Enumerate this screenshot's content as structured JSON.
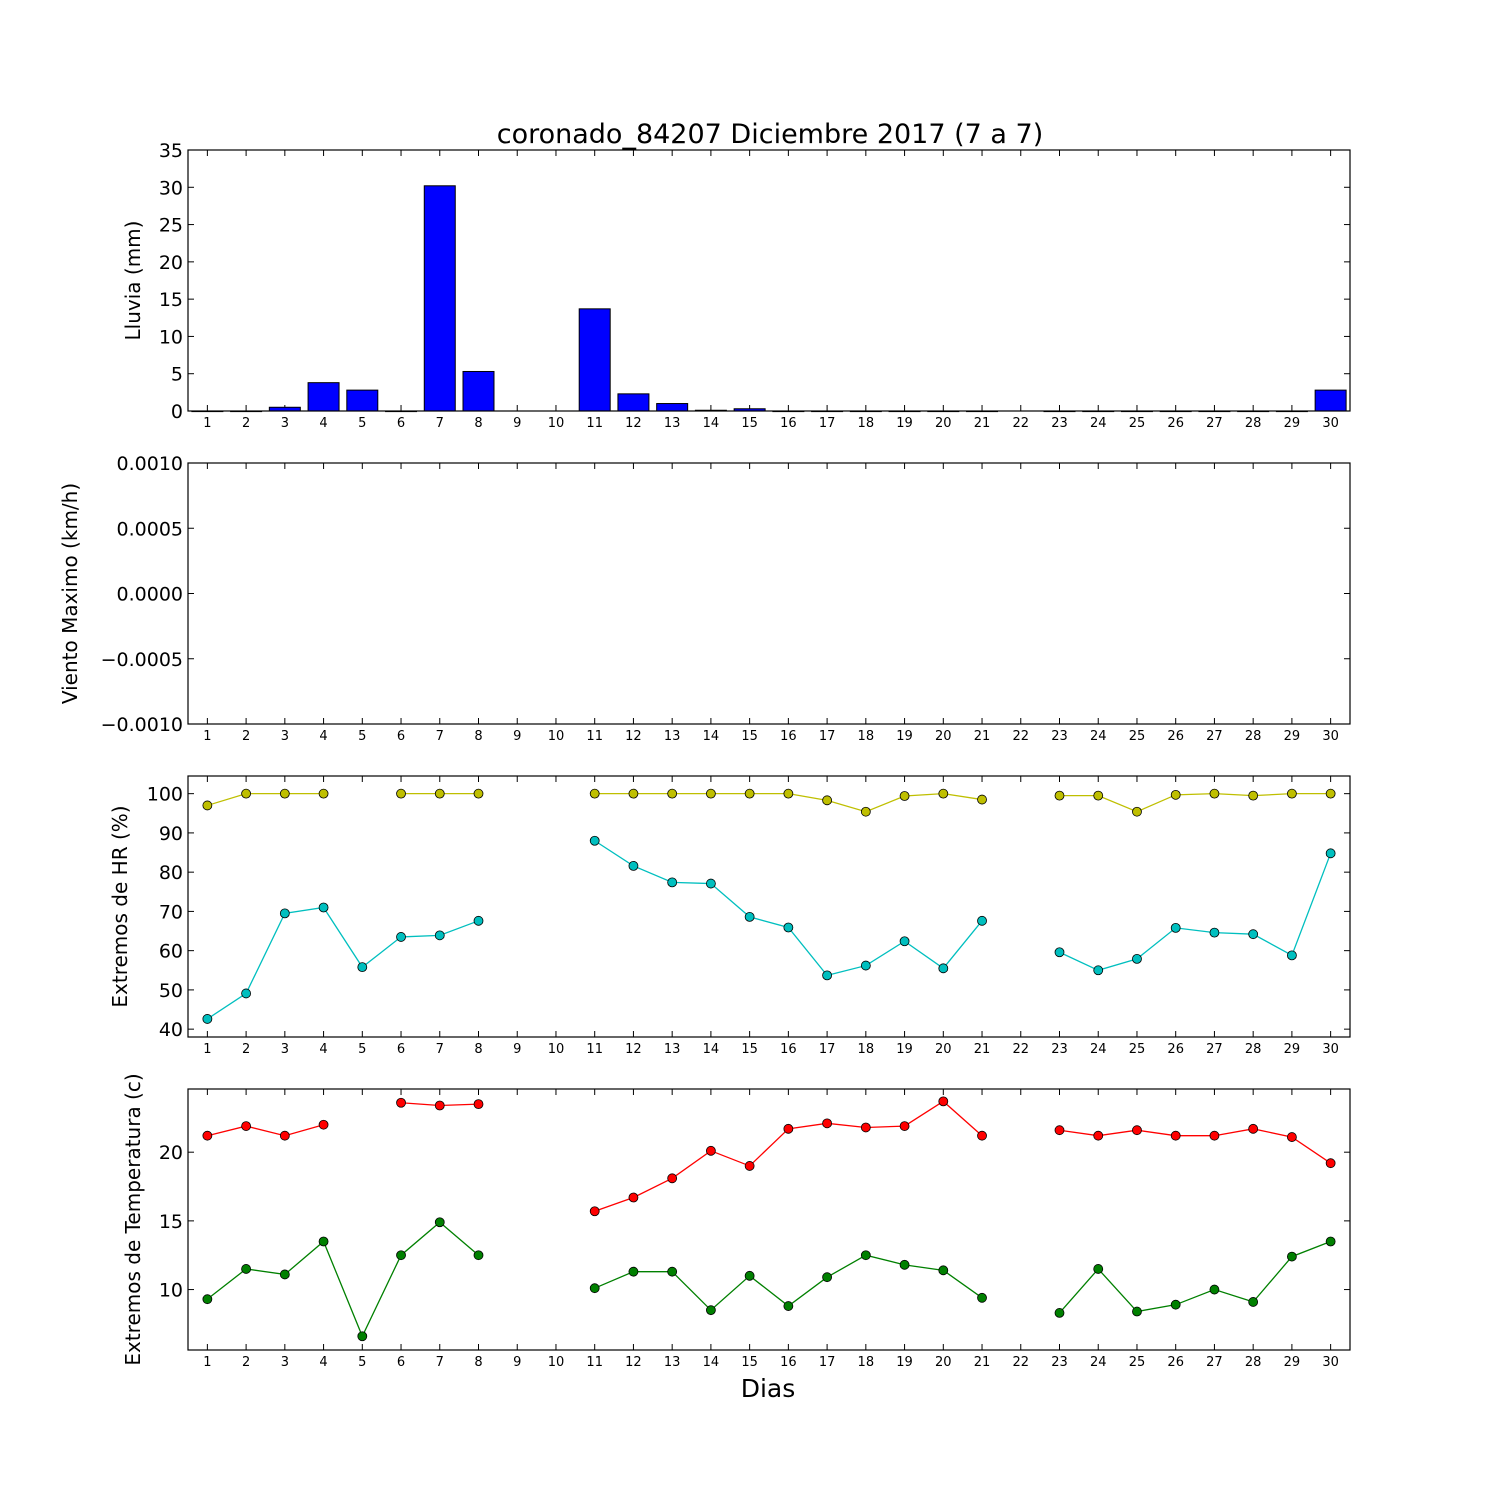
{
  "figure": {
    "title": "coronado_84207 Diciembre 2017  (7 a 7)",
    "xlabel": "Dias"
  },
  "chart_data": [
    {
      "type": "bar",
      "ylabel": "Lluvia (mm)",
      "ylim": [
        0,
        35
      ],
      "yticks": [
        0,
        5,
        10,
        15,
        20,
        25,
        30,
        35
      ],
      "categories": [
        1,
        2,
        3,
        4,
        5,
        6,
        7,
        8,
        9,
        10,
        11,
        12,
        13,
        14,
        15,
        16,
        17,
        18,
        19,
        20,
        21,
        22,
        23,
        24,
        25,
        26,
        27,
        28,
        29,
        30
      ],
      "values": [
        0,
        0,
        0.5,
        3.8,
        2.8,
        0,
        30.2,
        5.3,
        null,
        null,
        13.7,
        2.3,
        1.0,
        0.1,
        0.3,
        0,
        0,
        0,
        0,
        0,
        0,
        null,
        0,
        0,
        0,
        0,
        0,
        0,
        0,
        2.8
      ],
      "color": "#0000ff"
    },
    {
      "type": "line",
      "ylabel": "Viento Maximo (km/h)",
      "ylim": [
        -0.001,
        0.001
      ],
      "yticks": [
        "−0.0010",
        "−0.0005",
        "0.0000",
        "0.0005",
        "0.0010"
      ],
      "yticks_values": [
        -0.001,
        -0.0005,
        0,
        0.0005,
        0.001
      ],
      "x": [
        1,
        2,
        3,
        4,
        5,
        6,
        7,
        8,
        9,
        10,
        11,
        12,
        13,
        14,
        15,
        16,
        17,
        18,
        19,
        20,
        21,
        22,
        23,
        24,
        25,
        26,
        27,
        28,
        29,
        30
      ],
      "series": []
    },
    {
      "type": "line",
      "ylabel": "Extremos de HR (%)",
      "ylim": [
        38,
        104.5
      ],
      "yticks": [
        40,
        50,
        60,
        70,
        80,
        90,
        100
      ],
      "x": [
        1,
        2,
        3,
        4,
        5,
        6,
        7,
        8,
        9,
        10,
        11,
        12,
        13,
        14,
        15,
        16,
        17,
        18,
        19,
        20,
        21,
        22,
        23,
        24,
        25,
        26,
        27,
        28,
        29,
        30
      ],
      "series": [
        {
          "color": "#bfbf00",
          "values": [
            97,
            100,
            100,
            100,
            null,
            100,
            100,
            100,
            null,
            null,
            100,
            100,
            100,
            100,
            100,
            100,
            98.3,
            95.4,
            99.4,
            100,
            98.5,
            null,
            99.5,
            99.5,
            95.4,
            99.7,
            100,
            99.5,
            100,
            100
          ]
        },
        {
          "color": "#00bfbf",
          "values": [
            42.6,
            49.1,
            69.5,
            71.0,
            55.8,
            63.5,
            63.9,
            67.6,
            null,
            null,
            88.0,
            81.6,
            77.4,
            77.1,
            68.6,
            65.9,
            53.7,
            56.2,
            62.4,
            55.5,
            67.6,
            null,
            59.6,
            55.0,
            57.9,
            65.8,
            64.6,
            64.2,
            58.8,
            84.8
          ]
        }
      ]
    },
    {
      "type": "line",
      "ylabel": "Extremos de Temperatura (c)",
      "ylim": [
        5.6,
        24.6
      ],
      "yticks": [
        10,
        15,
        20
      ],
      "x": [
        1,
        2,
        3,
        4,
        5,
        6,
        7,
        8,
        9,
        10,
        11,
        12,
        13,
        14,
        15,
        16,
        17,
        18,
        19,
        20,
        21,
        22,
        23,
        24,
        25,
        26,
        27,
        28,
        29,
        30
      ],
      "series": [
        {
          "color": "#ff0000",
          "values": [
            21.2,
            21.9,
            21.2,
            22.0,
            null,
            23.6,
            23.4,
            23.5,
            null,
            null,
            15.7,
            16.7,
            18.1,
            20.1,
            19.0,
            21.7,
            22.1,
            21.8,
            21.9,
            23.7,
            21.2,
            null,
            21.6,
            21.2,
            21.6,
            21.2,
            21.2,
            21.7,
            21.1,
            19.2
          ]
        },
        {
          "color": "#008000",
          "values": [
            9.3,
            11.5,
            11.1,
            13.5,
            6.6,
            12.5,
            14.9,
            12.5,
            null,
            null,
            10.1,
            11.3,
            11.3,
            8.5,
            11.0,
            8.8,
            10.9,
            12.5,
            11.8,
            11.4,
            9.4,
            null,
            8.3,
            11.5,
            8.4,
            8.9,
            10.0,
            9.1,
            12.4,
            13.5
          ]
        }
      ]
    }
  ]
}
